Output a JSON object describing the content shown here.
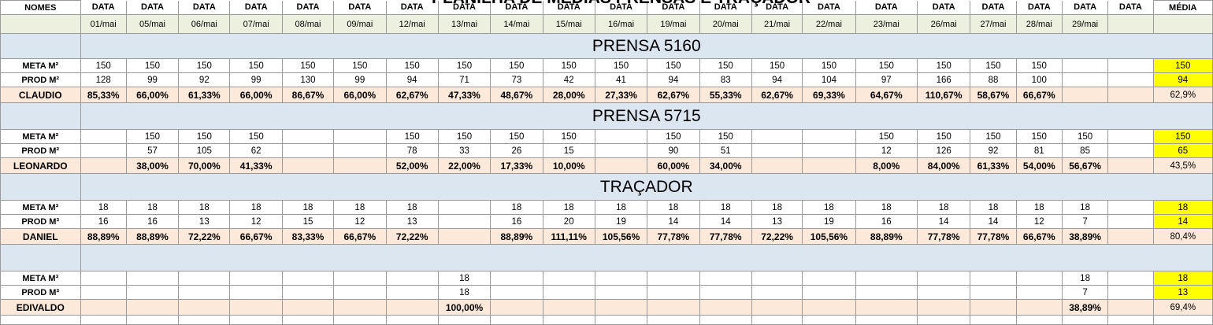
{
  "title": "PLANILHA DE MÉDIAS PRENSAS E TRAÇADOR",
  "header": {
    "name_col": "NOMES",
    "data_label": "DATA",
    "avg_label": "MÉDIA",
    "dates": [
      "01/mai",
      "05/mai",
      "06/mai",
      "07/mai",
      "08/mai",
      "09/mai",
      "12/mai",
      "13/mai",
      "14/mai",
      "15/mai",
      "16/mai",
      "19/mai",
      "20/mai",
      "21/mai",
      "22/mai",
      "23/mai",
      "26/mai",
      "27/mai",
      "28/mai",
      "29/mai",
      ""
    ]
  },
  "sections": [
    {
      "title": "PRENSA 5160",
      "rows": [
        {
          "label": "META M²",
          "type": "meta",
          "values": [
            "150",
            "150",
            "150",
            "150",
            "150",
            "150",
            "150",
            "150",
            "150",
            "150",
            "150",
            "150",
            "150",
            "150",
            "150",
            "150",
            "150",
            "150",
            "150",
            "",
            ""
          ],
          "avg": "150"
        },
        {
          "label": "PROD M²",
          "type": "prod",
          "values": [
            "128",
            "99",
            "92",
            "99",
            "130",
            "99",
            "94",
            "71",
            "73",
            "42",
            "41",
            "94",
            "83",
            "94",
            "104",
            "97",
            "166",
            "88",
            "100",
            "",
            ""
          ],
          "avg": "94"
        },
        {
          "label": "CLAUDIO",
          "type": "pct",
          "values": [
            "85,33%",
            "66,00%",
            "61,33%",
            "66,00%",
            "86,67%",
            "66,00%",
            "62,67%",
            "47,33%",
            "48,67%",
            "28,00%",
            "27,33%",
            "62,67%",
            "55,33%",
            "62,67%",
            "69,33%",
            "64,67%",
            "110,67%",
            "58,67%",
            "66,67%",
            "",
            ""
          ],
          "avg": "62,9%"
        }
      ]
    },
    {
      "title": "PRENSA 5715",
      "rows": [
        {
          "label": "META M²",
          "type": "meta",
          "values": [
            "",
            "150",
            "150",
            "150",
            "",
            "",
            "150",
            "150",
            "150",
            "150",
            "",
            "150",
            "150",
            "",
            "",
            "150",
            "150",
            "150",
            "150",
            "150",
            ""
          ],
          "avg": "150"
        },
        {
          "label": "PROD M²",
          "type": "prod",
          "values": [
            "",
            "57",
            "105",
            "62",
            "",
            "",
            "78",
            "33",
            "26",
            "15",
            "",
            "90",
            "51",
            "",
            "",
            "12",
            "126",
            "92",
            "81",
            "85",
            ""
          ],
          "avg": "65"
        },
        {
          "label": "LEONARDO",
          "type": "pct",
          "values": [
            "",
            "38,00%",
            "70,00%",
            "41,33%",
            "",
            "",
            "52,00%",
            "22,00%",
            "17,33%",
            "10,00%",
            "",
            "60,00%",
            "34,00%",
            "",
            "",
            "8,00%",
            "84,00%",
            "61,33%",
            "54,00%",
            "56,67%",
            ""
          ],
          "avg": "43,5%"
        }
      ]
    },
    {
      "title": "TRAÇADOR",
      "rows": [
        {
          "label": "META M³",
          "type": "meta",
          "values": [
            "18",
            "18",
            "18",
            "18",
            "18",
            "18",
            "18",
            "",
            "18",
            "18",
            "18",
            "18",
            "18",
            "18",
            "18",
            "18",
            "18",
            "18",
            "18",
            "18",
            ""
          ],
          "avg": "18"
        },
        {
          "label": "PROD M³",
          "type": "prod",
          "values": [
            "16",
            "16",
            "13",
            "12",
            "15",
            "12",
            "13",
            "",
            "16",
            "20",
            "19",
            "14",
            "14",
            "13",
            "19",
            "16",
            "14",
            "14",
            "12",
            "7",
            ""
          ],
          "avg": "14"
        },
        {
          "label": "DANIEL",
          "type": "pct",
          "values": [
            "88,89%",
            "88,89%",
            "72,22%",
            "66,67%",
            "83,33%",
            "66,67%",
            "72,22%",
            "",
            "88,89%",
            "111,11%",
            "105,56%",
            "77,78%",
            "77,78%",
            "72,22%",
            "105,56%",
            "88,89%",
            "77,78%",
            "77,78%",
            "66,67%",
            "38,89%",
            ""
          ],
          "avg": "80,4%"
        }
      ]
    },
    {
      "title": "",
      "rows": [
        {
          "label": "META M³",
          "type": "meta",
          "values": [
            "",
            "",
            "",
            "",
            "",
            "",
            "",
            "18",
            "",
            "",
            "",
            "",
            "",
            "",
            "",
            "",
            "",
            "",
            "",
            "18",
            ""
          ],
          "avg": "18"
        },
        {
          "label": "PROD M³",
          "type": "prod",
          "values": [
            "",
            "",
            "",
            "",
            "",
            "",
            "",
            "18",
            "",
            "",
            "",
            "",
            "",
            "",
            "",
            "",
            "",
            "",
            "",
            "7",
            ""
          ],
          "avg": "13"
        },
        {
          "label": "EDIVALDO",
          "type": "pct",
          "values": [
            "",
            "",
            "",
            "",
            "",
            "",
            "",
            "100,00%",
            "",
            "",
            "",
            "",
            "",
            "",
            "",
            "",
            "",
            "",
            "",
            "38,89%",
            ""
          ],
          "avg": "69,4%"
        }
      ]
    }
  ]
}
